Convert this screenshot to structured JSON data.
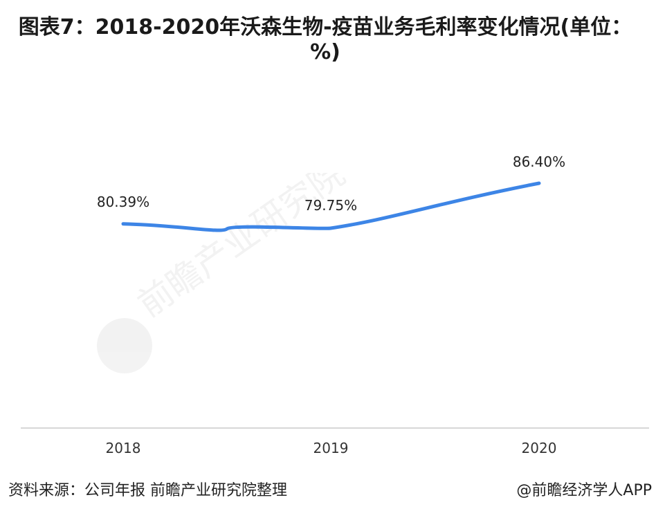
{
  "chart_data": {
    "type": "line",
    "title": "图表7：2018-2020年沃森生物-疫苗业务毛利率变化情况(单位：%)",
    "categories": [
      "2018",
      "2019",
      "2020"
    ],
    "series": [
      {
        "values": [
          80.39,
          79.75,
          86.4
        ],
        "color": "#3d85e6"
      }
    ],
    "data_labels": [
      "80.39%",
      "79.75%",
      "86.40%"
    ],
    "grid": false,
    "legend": "none",
    "smooth": true
  },
  "footer": {
    "source": "资料来源：公司年报 前瞻产业研究院整理",
    "brand": "@前瞻经济学人APP"
  },
  "watermark": {
    "text": "前瞻产业研究院"
  },
  "colors": {
    "line": "#3d85e6",
    "axis": "#bfbfbf",
    "text": "#222222"
  }
}
